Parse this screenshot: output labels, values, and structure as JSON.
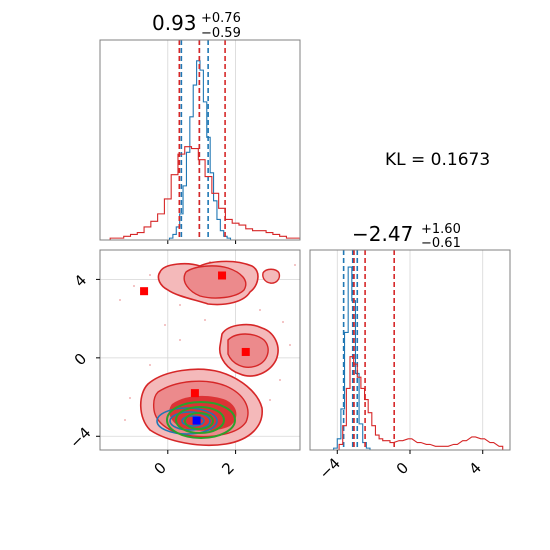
{
  "colors": {
    "blue": "#1f77b4",
    "red": "#d62728",
    "green": "#2ca02c",
    "marker_blue": "#0000ff",
    "marker_red": "#ff0000",
    "grid": "#d6d6d6",
    "frame": "#808080"
  },
  "panels": {
    "param1": {
      "title_value": "0.93",
      "title_plus": "+0.76",
      "title_minus": "−0.59"
    },
    "param2": {
      "title_value": "−2.47",
      "title_plus": "+1.60",
      "title_minus": "−0.61"
    },
    "kl_label": "KL = 0.1673"
  },
  "chart_data": [
    {
      "type": "histogram",
      "panel": "param1-marginal",
      "xlim": [
        -2.0,
        3.9
      ],
      "grid": true,
      "series": [
        {
          "color": "blue",
          "bin_centers": [
            0.1,
            0.2,
            0.3,
            0.4,
            0.5,
            0.6,
            0.7,
            0.8,
            0.9,
            1.0,
            1.1,
            1.2,
            1.3,
            1.4,
            1.5,
            1.6,
            1.7,
            1.8
          ],
          "counts": [
            0.01,
            0.03,
            0.07,
            0.14,
            0.29,
            0.47,
            0.66,
            0.83,
            0.96,
            0.91,
            0.74,
            0.55,
            0.36,
            0.21,
            0.11,
            0.05,
            0.02,
            0.01
          ],
          "quantile_lines": [
            0.4,
            0.93,
            1.19
          ]
        },
        {
          "color": "red",
          "bin_centers": [
            -1.6,
            -1.4,
            -1.2,
            -1.0,
            -0.8,
            -0.6,
            -0.4,
            -0.2,
            0.0,
            0.2,
            0.4,
            0.6,
            0.8,
            1.0,
            1.2,
            1.4,
            1.6,
            1.8,
            2.0,
            2.2,
            2.4,
            2.6,
            2.8,
            3.0,
            3.2,
            3.4,
            3.6,
            3.8
          ],
          "counts": [
            0.01,
            0.01,
            0.02,
            0.03,
            0.04,
            0.07,
            0.1,
            0.14,
            0.22,
            0.35,
            0.46,
            0.5,
            0.49,
            0.43,
            0.34,
            0.25,
            0.17,
            0.11,
            0.09,
            0.08,
            0.06,
            0.05,
            0.05,
            0.04,
            0.03,
            0.02,
            0.01,
            0.01
          ],
          "quantile_lines": [
            0.34,
            0.93,
            1.69
          ]
        }
      ]
    },
    {
      "type": "histogram",
      "panel": "param2-marginal",
      "xlim": [
        -5.5,
        5.5
      ],
      "grid": true,
      "xticks": [
        -4,
        0,
        4
      ],
      "series": [
        {
          "color": "blue",
          "bin_centers": [
            -4.1,
            -3.9,
            -3.7,
            -3.5,
            -3.3,
            -3.1,
            -2.9,
            -2.7,
            -2.5,
            -2.3
          ],
          "counts": [
            0.01,
            0.06,
            0.22,
            0.63,
            0.98,
            0.8,
            0.41,
            0.14,
            0.04,
            0.01
          ],
          "quantile_lines": [
            -3.65,
            -3.15,
            -2.9
          ]
        },
        {
          "color": "red",
          "bin_centers": [
            -3.8,
            -3.6,
            -3.4,
            -3.2,
            -3.0,
            -2.8,
            -2.6,
            -2.4,
            -2.2,
            -2.0,
            -1.8,
            -1.6,
            -1.4,
            -1.2,
            -1.0,
            -0.5,
            0.0,
            0.5,
            1.0,
            1.5,
            2.0,
            2.5,
            3.0,
            3.5,
            4.0,
            4.5,
            5.0
          ],
          "counts": [
            0.03,
            0.13,
            0.33,
            0.5,
            0.46,
            0.39,
            0.33,
            0.27,
            0.2,
            0.13,
            0.08,
            0.06,
            0.05,
            0.05,
            0.04,
            0.05,
            0.06,
            0.04,
            0.03,
            0.02,
            0.02,
            0.03,
            0.05,
            0.07,
            0.06,
            0.04,
            0.02
          ],
          "quantile_lines": [
            -3.08,
            -2.47,
            -0.87
          ]
        }
      ]
    },
    {
      "type": "contour",
      "panel": "joint",
      "xlim": [
        -2.0,
        3.9
      ],
      "ylim": [
        -4.7,
        5.5
      ],
      "xticks": [
        0,
        2
      ],
      "yticks": [
        -4,
        0,
        4
      ],
      "grid": true,
      "red_region_markers": [
        {
          "x": -0.7,
          "y": 3.4
        },
        {
          "x": 1.6,
          "y": 4.2
        },
        {
          "x": 2.3,
          "y": 0.3
        },
        {
          "x": 0.8,
          "y": -1.8
        }
      ],
      "blue_marker": {
        "x": 0.85,
        "y": -3.2
      }
    }
  ]
}
